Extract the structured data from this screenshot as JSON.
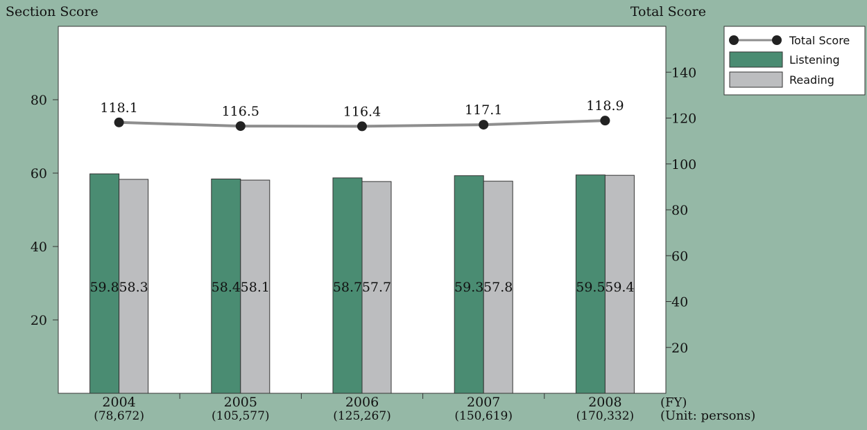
{
  "chart_data": {
    "type": "bar",
    "categories": [
      "2004",
      "2005",
      "2006",
      "2007",
      "2008"
    ],
    "category_sublabels": [
      "(78,672)",
      "(105,577)",
      "(125,267)",
      "(150,619)",
      "(170,332)"
    ],
    "xlabel": "(FY)",
    "xlabel_unit": "(Unit: persons)",
    "ylabel_left": "Section Score",
    "ylabel_right": "Total Score",
    "ylim_left": [
      0,
      100
    ],
    "yticks_left": [
      20,
      40,
      60,
      80
    ],
    "ylim_right": [
      0,
      160
    ],
    "yticks_right": [
      20,
      40,
      60,
      80,
      100,
      120,
      140
    ],
    "series": [
      {
        "name": "Listening",
        "type": "bar",
        "axis": "left",
        "color": "#4a8c72",
        "values": [
          59.8,
          58.4,
          58.7,
          59.3,
          59.5
        ]
      },
      {
        "name": "Reading",
        "type": "bar",
        "axis": "left",
        "color": "#bcbdbf",
        "values": [
          58.3,
          58.1,
          57.7,
          57.8,
          59.4
        ]
      },
      {
        "name": "Total Score",
        "type": "line",
        "axis": "right",
        "color": "#8e8e8e",
        "marker_color": "#222222",
        "values": [
          118.1,
          116.5,
          116.4,
          117.1,
          118.9
        ]
      }
    ],
    "legend_position": "top-right"
  }
}
